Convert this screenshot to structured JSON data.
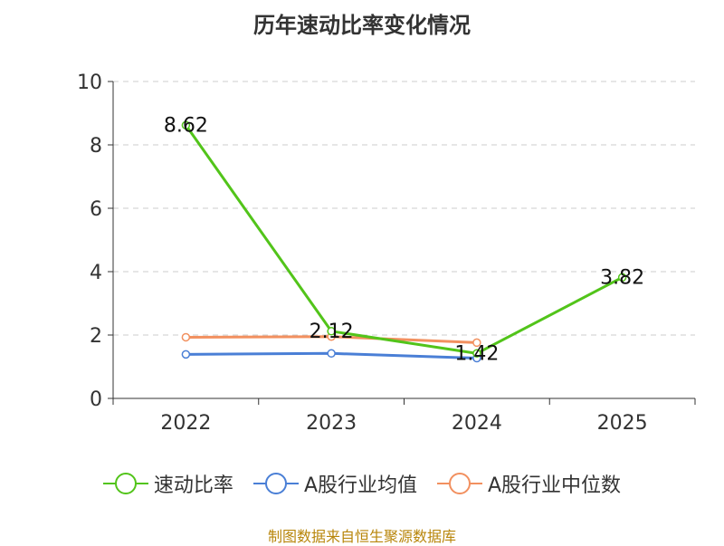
{
  "chart_data": {
    "type": "line",
    "title": "历年速动比率变化情况",
    "categories": [
      "2022",
      "2023",
      "2024",
      "2025"
    ],
    "ylim": [
      0,
      10
    ],
    "yticks": [
      0,
      2,
      4,
      6,
      8,
      10
    ],
    "grid": true,
    "legend_position": "bottom",
    "series": [
      {
        "name": "速动比率",
        "color": "#52c41a",
        "values": [
          8.62,
          2.12,
          1.42,
          3.82
        ],
        "labels": [
          "8.62",
          "2.12",
          "1.42",
          "3.82"
        ]
      },
      {
        "name": "A股行业均值",
        "color": "#4a7fd6",
        "values": [
          1.39,
          1.42,
          1.27,
          null
        ]
      },
      {
        "name": "A股行业中位数",
        "color": "#f2905f",
        "values": [
          1.93,
          1.95,
          1.76,
          null
        ]
      }
    ]
  },
  "source": "制图数据来自恒生聚源数据库"
}
